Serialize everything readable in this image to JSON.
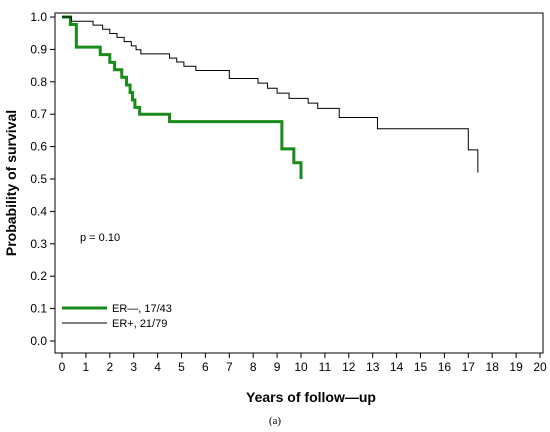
{
  "chart_data": {
    "type": "line",
    "xlabel": "Years of follow—up",
    "ylabel": "Probability of survival",
    "xlim": [
      0,
      20
    ],
    "ylim": [
      0.0,
      1.0
    ],
    "xticks": [
      "0",
      "1",
      "2",
      "3",
      "4",
      "5",
      "6",
      "7",
      "8",
      "9",
      "10",
      "11",
      "12",
      "13",
      "14",
      "15",
      "16",
      "17",
      "18",
      "19",
      "20"
    ],
    "yticks": [
      "0.0",
      "0.1",
      "0.2",
      "0.3",
      "0.4",
      "0.5",
      "0.6",
      "0.7",
      "0.8",
      "0.9",
      "1.0"
    ],
    "grid": false,
    "legend_position": "bottom-left",
    "annotation": "p  = 0.10",
    "caption": "(a)",
    "series": [
      {
        "name": "ER—,  17/43",
        "color": "#1a8a1a",
        "steps": [
          [
            0,
            1.0
          ],
          [
            0.35,
            0.977
          ],
          [
            0.6,
            0.907
          ],
          [
            1.6,
            0.884
          ],
          [
            2.0,
            0.86
          ],
          [
            2.2,
            0.837
          ],
          [
            2.5,
            0.814
          ],
          [
            2.7,
            0.79
          ],
          [
            2.85,
            0.767
          ],
          [
            2.95,
            0.744
          ],
          [
            3.05,
            0.721
          ],
          [
            3.25,
            0.7
          ],
          [
            4.5,
            0.677
          ],
          [
            9.2,
            0.593
          ],
          [
            9.7,
            0.55
          ],
          [
            10.0,
            0.5
          ]
        ],
        "end_x": 10.0
      },
      {
        "name": "ER+,  21/79",
        "color": "#000000",
        "steps": [
          [
            0,
            1.0
          ],
          [
            0.4,
            0.987
          ],
          [
            1.3,
            0.975
          ],
          [
            1.7,
            0.962
          ],
          [
            2.0,
            0.949
          ],
          [
            2.3,
            0.937
          ],
          [
            2.6,
            0.924
          ],
          [
            2.9,
            0.911
          ],
          [
            3.1,
            0.899
          ],
          [
            3.3,
            0.886
          ],
          [
            4.5,
            0.873
          ],
          [
            4.8,
            0.861
          ],
          [
            5.1,
            0.848
          ],
          [
            5.6,
            0.835
          ],
          [
            7.0,
            0.81
          ],
          [
            8.2,
            0.796
          ],
          [
            8.6,
            0.78
          ],
          [
            9.0,
            0.765
          ],
          [
            9.5,
            0.749
          ],
          [
            10.3,
            0.734
          ],
          [
            10.7,
            0.718
          ],
          [
            11.6,
            0.69
          ],
          [
            13.2,
            0.655
          ],
          [
            17.0,
            0.59
          ],
          [
            17.4,
            0.52
          ]
        ],
        "end_x": 17.4
      }
    ]
  }
}
